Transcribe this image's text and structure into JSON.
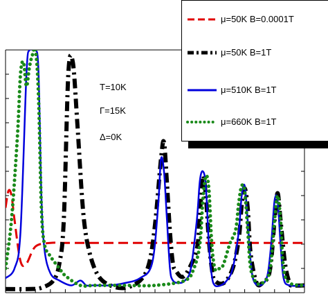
{
  "chart_data": {
    "type": "line",
    "title": "",
    "xlabel": "",
    "ylabel": "",
    "xlim": [
      0,
      100
    ],
    "ylim": [
      0,
      1
    ],
    "legend_position": "top-right",
    "annotations": [
      "T=10K",
      "Γ=15K",
      "Δ=0K"
    ],
    "series": [
      {
        "name": "μ=50K  B=0.0001T",
        "color": "#e00000",
        "style": "dashed",
        "x": [
          0,
          1,
          2,
          3,
          5,
          7,
          10,
          15,
          20,
          30,
          50,
          70,
          100
        ],
        "y": [
          0.35,
          0.42,
          0.4,
          0.3,
          0.13,
          0.12,
          0.19,
          0.205,
          0.205,
          0.205,
          0.205,
          0.205,
          0.205
        ]
      },
      {
        "name": "μ=50K  B=1T",
        "color": "#000000",
        "style": "dash-dot",
        "x": [
          0,
          8,
          12,
          16,
          18,
          19.5,
          21,
          22.5,
          24,
          26,
          28,
          31,
          35,
          40,
          45,
          48,
          50,
          52,
          53,
          54,
          55,
          56,
          57,
          59,
          61,
          64,
          65,
          66,
          67,
          68,
          69,
          70,
          73,
          76,
          78,
          79,
          80,
          81,
          82,
          84,
          86,
          88,
          89,
          90,
          91,
          92,
          93.5,
          95,
          96,
          100
        ],
        "y": [
          0.015,
          0.015,
          0.02,
          0.05,
          0.12,
          0.3,
          0.9,
          0.95,
          0.7,
          0.33,
          0.17,
          0.07,
          0.03,
          0.02,
          0.05,
          0.12,
          0.28,
          0.55,
          0.62,
          0.45,
          0.25,
          0.12,
          0.09,
          0.065,
          0.09,
          0.18,
          0.32,
          0.48,
          0.4,
          0.22,
          0.1,
          0.05,
          0.04,
          0.1,
          0.22,
          0.36,
          0.43,
          0.35,
          0.16,
          0.04,
          0.04,
          0.07,
          0.15,
          0.3,
          0.41,
          0.3,
          0.12,
          0.04,
          0.03,
          0.03
        ]
      },
      {
        "name": "μ=510K  B=1T",
        "color": "#0000dd",
        "style": "solid",
        "x": [
          0,
          3,
          5,
          7,
          8,
          9,
          10,
          11,
          12,
          13,
          15,
          18,
          22,
          25,
          27,
          29,
          31,
          35,
          40,
          45,
          49,
          51,
          52,
          53,
          54,
          55,
          56,
          58,
          60,
          62,
          64,
          65,
          66,
          67,
          68,
          69,
          70,
          72,
          74,
          76,
          78,
          79,
          80,
          81,
          82,
          83,
          85,
          87,
          88,
          89,
          90,
          91,
          92,
          93,
          95,
          100
        ],
        "y": [
          0.06,
          0.1,
          0.25,
          0.9,
          1.0,
          1.0,
          1.0,
          0.92,
          0.4,
          0.18,
          0.08,
          0.05,
          0.03,
          0.05,
          0.03,
          0.03,
          0.03,
          0.03,
          0.04,
          0.06,
          0.12,
          0.35,
          0.55,
          0.5,
          0.3,
          0.1,
          0.05,
          0.04,
          0.05,
          0.1,
          0.3,
          0.46,
          0.5,
          0.44,
          0.2,
          0.07,
          0.03,
          0.03,
          0.05,
          0.1,
          0.25,
          0.4,
          0.44,
          0.3,
          0.13,
          0.05,
          0.03,
          0.05,
          0.1,
          0.22,
          0.38,
          0.38,
          0.2,
          0.06,
          0.03,
          0.03
        ]
      },
      {
        "name": "μ=660K  B=1T",
        "color": "#1a8a1a",
        "style": "dotted",
        "x": [
          0,
          2,
          4,
          5,
          6,
          7,
          8,
          9,
          10,
          11,
          12,
          13,
          15,
          18,
          20,
          25,
          30,
          40,
          50,
          60,
          63,
          65,
          66,
          67,
          68,
          69,
          70,
          71,
          72,
          73,
          75,
          77,
          78,
          79,
          80,
          81,
          82,
          84,
          86,
          88,
          89,
          90,
          91,
          92,
          93,
          95,
          100
        ],
        "y": [
          0.1,
          0.3,
          0.65,
          0.9,
          0.95,
          0.85,
          0.93,
          0.98,
          1.0,
          0.82,
          0.35,
          0.2,
          0.15,
          0.1,
          0.07,
          0.03,
          0.03,
          0.03,
          0.03,
          0.05,
          0.1,
          0.2,
          0.38,
          0.48,
          0.43,
          0.2,
          0.1,
          0.1,
          0.1,
          0.12,
          0.2,
          0.26,
          0.37,
          0.44,
          0.42,
          0.26,
          0.1,
          0.04,
          0.04,
          0.07,
          0.15,
          0.3,
          0.4,
          0.3,
          0.1,
          0.04,
          0.03
        ]
      }
    ]
  }
}
